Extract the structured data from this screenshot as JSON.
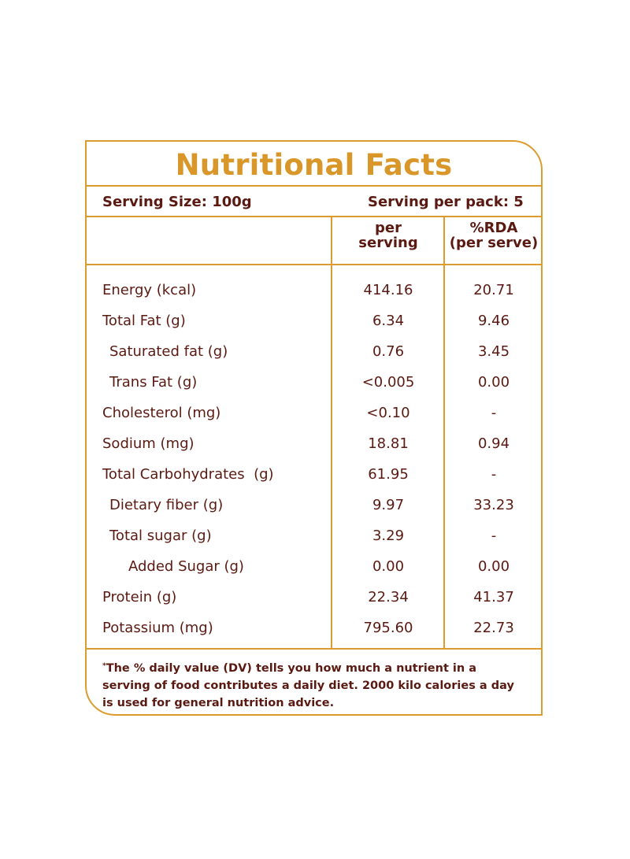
{
  "title": "Nutritional Facts",
  "serving_size": "Serving Size: 100g",
  "serving_per_pack": "Serving per pack: 5",
  "col_per_serving_line1": "per",
  "col_per_serving_line2": "serving",
  "col_rda_line1": "%RDA",
  "col_rda_line2": "(per serve)",
  "rows": [
    {
      "name": "Energy (kcal)",
      "value": "414.16",
      "rda": "20.71"
    },
    {
      "name": "Total Fat (g)",
      "value": "6.34",
      "rda": "9.46"
    },
    {
      "name": "Saturated fat (g)",
      "value": "0.76",
      "rda": "3.45"
    },
    {
      "name": "Trans Fat (g)",
      "value": "<0.005",
      "rda": "0.00"
    },
    {
      "name": "Cholesterol (mg)",
      "value": "<0.10",
      "rda": "-"
    },
    {
      "name": "Sodium (mg)",
      "value": "18.81",
      "rda": "0.94"
    },
    {
      "name": "Total Carbohydrates  (g)",
      "value": "61.95",
      "rda": "-"
    },
    {
      "name": "Dietary fiber (g)",
      "value": "9.97",
      "rda": "33.23"
    },
    {
      "name": "Total sugar (g)",
      "value": "3.29",
      "rda": "-"
    },
    {
      "name": "Added Sugar (g)",
      "value": "0.00",
      "rda": "0.00"
    },
    {
      "name": "Protein (g)",
      "value": "22.34",
      "rda": "41.37"
    },
    {
      "name": "Potassium (mg)",
      "value": "795.60",
      "rda": "22.73"
    }
  ],
  "footnote_mark": "*",
  "footnote_text": "The % daily value (DV) tells you how much a nutrient in a serving of food contributes a daily diet. 2000 kilo calories a day is used for general nutrition advice.",
  "colors": {
    "accent": "#dc9b2e",
    "title": "#d9972a",
    "text": "#5a1a12"
  }
}
